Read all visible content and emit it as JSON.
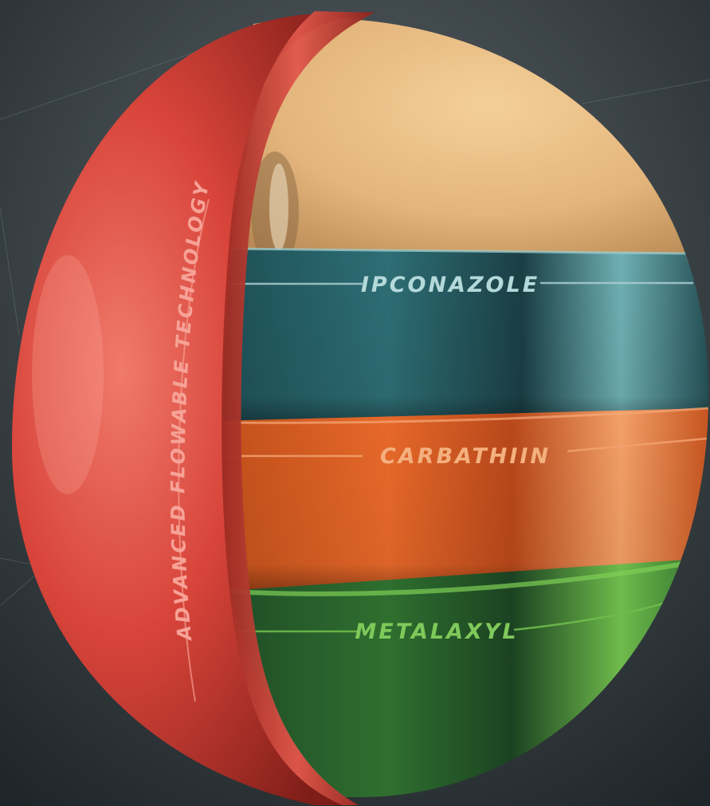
{
  "layers": {
    "shell": {
      "label": "ADVANCED FLOWABLE TECHNOLOGY",
      "color": "#d8443a"
    },
    "seed": {
      "color": "#e9c08c"
    },
    "bands": [
      {
        "label": "IPCONAZOLE",
        "color": "#2c6f76"
      },
      {
        "label": "CARBATHIIN",
        "color": "#e06226"
      },
      {
        "label": "METALAXYL",
        "color": "#3f8f35"
      }
    ]
  },
  "background": {
    "color": "#2a3034"
  }
}
